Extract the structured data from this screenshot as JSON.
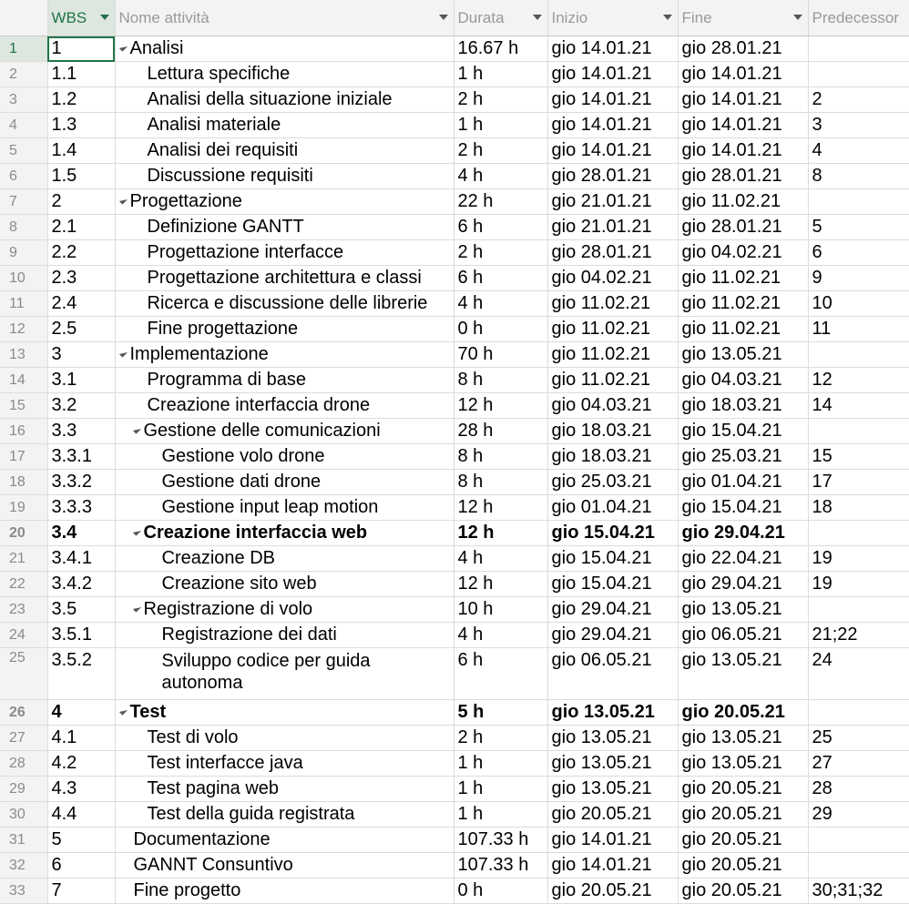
{
  "headers": {
    "wbs": "WBS",
    "name": "Nome attività",
    "duration": "Durata",
    "start": "Inizio",
    "finish": "Fine",
    "predecessors": "Predecessor"
  },
  "rows": [
    {
      "n": "1",
      "wbs": "1",
      "name": "Analisi",
      "dur": "16.67 h",
      "start": "gio 14.01.21",
      "end": "gio 28.01.21",
      "pred": ""
    },
    {
      "n": "2",
      "wbs": "1.1",
      "name": "Lettura specifiche",
      "dur": "1 h",
      "start": "gio 14.01.21",
      "end": "gio 14.01.21",
      "pred": ""
    },
    {
      "n": "3",
      "wbs": "1.2",
      "name": "Analisi della situazione iniziale",
      "dur": "2 h",
      "start": "gio 14.01.21",
      "end": "gio 14.01.21",
      "pred": "2"
    },
    {
      "n": "4",
      "wbs": "1.3",
      "name": "Analisi materiale",
      "dur": "1 h",
      "start": "gio 14.01.21",
      "end": "gio 14.01.21",
      "pred": "3"
    },
    {
      "n": "5",
      "wbs": "1.4",
      "name": "Analisi dei requisiti",
      "dur": "2 h",
      "start": "gio 14.01.21",
      "end": "gio 14.01.21",
      "pred": "4"
    },
    {
      "n": "6",
      "wbs": "1.5",
      "name": "Discussione requisiti",
      "dur": "4 h",
      "start": "gio 28.01.21",
      "end": "gio 28.01.21",
      "pred": "8"
    },
    {
      "n": "7",
      "wbs": "2",
      "name": "Progettazione",
      "dur": "22 h",
      "start": "gio 21.01.21",
      "end": "gio 11.02.21",
      "pred": ""
    },
    {
      "n": "8",
      "wbs": "2.1",
      "name": "Definizione GANTT",
      "dur": "6 h",
      "start": "gio 21.01.21",
      "end": "gio 28.01.21",
      "pred": "5"
    },
    {
      "n": "9",
      "wbs": "2.2",
      "name": "Progettazione interfacce",
      "dur": "2 h",
      "start": "gio 28.01.21",
      "end": "gio 04.02.21",
      "pred": "6"
    },
    {
      "n": "10",
      "wbs": "2.3",
      "name": "Progettazione architettura e classi",
      "dur": "6 h",
      "start": "gio 04.02.21",
      "end": "gio 11.02.21",
      "pred": "9"
    },
    {
      "n": "11",
      "wbs": "2.4",
      "name": "Ricerca e discussione delle librerie",
      "dur": "4 h",
      "start": "gio 11.02.21",
      "end": "gio 11.02.21",
      "pred": "10"
    },
    {
      "n": "12",
      "wbs": "2.5",
      "name": "Fine progettazione",
      "dur": "0 h",
      "start": "gio 11.02.21",
      "end": "gio 11.02.21",
      "pred": "11"
    },
    {
      "n": "13",
      "wbs": "3",
      "name": "Implementazione",
      "dur": "70 h",
      "start": "gio 11.02.21",
      "end": "gio 13.05.21",
      "pred": ""
    },
    {
      "n": "14",
      "wbs": "3.1",
      "name": "Programma di base",
      "dur": "8 h",
      "start": "gio 11.02.21",
      "end": "gio 04.03.21",
      "pred": "12"
    },
    {
      "n": "15",
      "wbs": "3.2",
      "name": "Creazione interfaccia drone",
      "dur": "12 h",
      "start": "gio 04.03.21",
      "end": "gio 18.03.21",
      "pred": "14"
    },
    {
      "n": "16",
      "wbs": "3.3",
      "name": "Gestione delle comunicazioni",
      "dur": "28 h",
      "start": "gio 18.03.21",
      "end": "gio 15.04.21",
      "pred": ""
    },
    {
      "n": "17",
      "wbs": "3.3.1",
      "name": "Gestione volo drone",
      "dur": "8 h",
      "start": "gio 18.03.21",
      "end": "gio 25.03.21",
      "pred": "15"
    },
    {
      "n": "18",
      "wbs": "3.3.2",
      "name": "Gestione dati drone",
      "dur": "8 h",
      "start": "gio 25.03.21",
      "end": "gio 01.04.21",
      "pred": "17"
    },
    {
      "n": "19",
      "wbs": "3.3.3",
      "name": "Gestione input leap motion",
      "dur": "12 h",
      "start": "gio 01.04.21",
      "end": "gio 15.04.21",
      "pred": "18"
    },
    {
      "n": "20",
      "wbs": "3.4",
      "name": "Creazione interfaccia web",
      "dur": "12 h",
      "start": "gio 15.04.21",
      "end": "gio 29.04.21",
      "pred": ""
    },
    {
      "n": "21",
      "wbs": "3.4.1",
      "name": "Creazione DB",
      "dur": "4 h",
      "start": "gio 15.04.21",
      "end": "gio 22.04.21",
      "pred": "19"
    },
    {
      "n": "22",
      "wbs": "3.4.2",
      "name": "Creazione sito web",
      "dur": "12 h",
      "start": "gio 15.04.21",
      "end": "gio 29.04.21",
      "pred": "19"
    },
    {
      "n": "23",
      "wbs": "3.5",
      "name": "Registrazione di volo",
      "dur": "10 h",
      "start": "gio 29.04.21",
      "end": "gio 13.05.21",
      "pred": ""
    },
    {
      "n": "24",
      "wbs": "3.5.1",
      "name": "Registrazione dei dati",
      "dur": "4 h",
      "start": "gio 29.04.21",
      "end": "gio 06.05.21",
      "pred": "21;22"
    },
    {
      "n": "25",
      "wbs": "3.5.2",
      "name": "Sviluppo codice per guida autonoma",
      "dur": "6 h",
      "start": "gio 06.05.21",
      "end": "gio 13.05.21",
      "pred": "24"
    },
    {
      "n": "26",
      "wbs": "4",
      "name": "Test",
      "dur": "5 h",
      "start": "gio 13.05.21",
      "end": "gio 20.05.21",
      "pred": ""
    },
    {
      "n": "27",
      "wbs": "4.1",
      "name": "Test di volo",
      "dur": "2 h",
      "start": "gio 13.05.21",
      "end": "gio 13.05.21",
      "pred": "25"
    },
    {
      "n": "28",
      "wbs": "4.2",
      "name": "Test interfacce java",
      "dur": "1 h",
      "start": "gio 13.05.21",
      "end": "gio 13.05.21",
      "pred": "27"
    },
    {
      "n": "29",
      "wbs": "4.3",
      "name": "Test pagina web",
      "dur": "1 h",
      "start": "gio 13.05.21",
      "end": "gio 20.05.21",
      "pred": "28"
    },
    {
      "n": "30",
      "wbs": "4.4",
      "name": "Test della guida registrata",
      "dur": "1 h",
      "start": "gio 20.05.21",
      "end": "gio 20.05.21",
      "pred": "29"
    },
    {
      "n": "31",
      "wbs": "5",
      "name": "Documentazione",
      "dur": "107.33 h",
      "start": "gio 14.01.21",
      "end": "gio 20.05.21",
      "pred": ""
    },
    {
      "n": "32",
      "wbs": "6",
      "name": "GANNT Consuntivo",
      "dur": "107.33 h",
      "start": "gio 14.01.21",
      "end": "gio 20.05.21",
      "pred": ""
    },
    {
      "n": "33",
      "wbs": "7",
      "name": "Fine progetto",
      "dur": "0 h",
      "start": "gio 20.05.21",
      "end": "gio 20.05.21",
      "pred": "30;31;32"
    }
  ]
}
